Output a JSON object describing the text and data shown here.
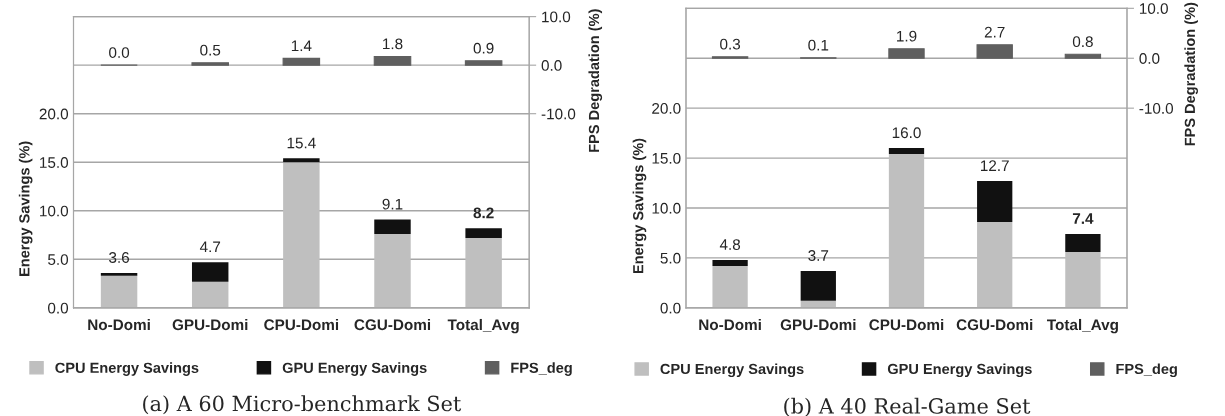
{
  "chart_data": [
    {
      "type": "bar",
      "title": "(a) A 60 Micro-benchmark Set",
      "ylabel": "Energy Savings (%)",
      "y2label": "FPS Degradation (%)",
      "categories": [
        "No-Domi",
        "GPU-Domi",
        "CPU-Domi",
        "CGU-Domi",
        "Total_Avg"
      ],
      "stacked": true,
      "series": [
        {
          "name": "CPU Energy Savings",
          "color": "#bfbfbf",
          "values": [
            3.3,
            2.7,
            15.0,
            7.6,
            7.2
          ]
        },
        {
          "name": "GPU Energy Savings",
          "color": "#111111",
          "values": [
            0.3,
            2.0,
            0.4,
            1.5,
            1.0
          ]
        },
        {
          "name": "FPS_deg",
          "color": "#5f5f5f",
          "axis": "y2",
          "values": [
            0.0,
            0.5,
            1.4,
            1.8,
            0.9
          ],
          "value_labels": [
            "0.0",
            "0.5",
            "1.4",
            "1.8",
            "0.9"
          ]
        }
      ],
      "totals": [
        "3.6",
        "4.7",
        "15.4",
        "9.1",
        "8.2"
      ],
      "ylim": [
        0,
        30
      ],
      "yticks": [
        {
          "value": 0,
          "label": "0.0"
        },
        {
          "value": 5,
          "label": "5.0"
        },
        {
          "value": 10,
          "label": "10.0"
        },
        {
          "value": 15,
          "label": "15.0"
        },
        {
          "value": 20,
          "label": "20.0"
        },
        {
          "value": 25,
          "label": null
        }
      ],
      "y2lim": [
        -50,
        10
      ],
      "y2ticks": [
        {
          "value": -10,
          "label": "-10.0"
        },
        {
          "value": 0,
          "label": "0.0"
        },
        {
          "value": 10,
          "label": "10.0"
        }
      ],
      "grid": "y",
      "legend": "bottom"
    },
    {
      "type": "bar",
      "title": "(b) A 40 Real-Game Set",
      "ylabel": "Energy Savings (%)",
      "y2label": "FPS Degradation (%)",
      "categories": [
        "No-Domi",
        "GPU-Domi",
        "CPU-Domi",
        "CGU-Domi",
        "Total_Avg"
      ],
      "stacked": true,
      "series": [
        {
          "name": "CPU Energy Savings",
          "color": "#bfbfbf",
          "values": [
            4.2,
            0.7,
            15.4,
            8.6,
            5.6
          ]
        },
        {
          "name": "GPU Energy Savings",
          "color": "#111111",
          "values": [
            0.6,
            3.0,
            0.6,
            4.1,
            1.8
          ]
        },
        {
          "name": "FPS_deg",
          "color": "#5f5f5f",
          "axis": "y2",
          "values": [
            0.3,
            0.1,
            1.9,
            2.7,
            0.8
          ],
          "value_labels": [
            "0.3",
            "0.1",
            "1.9",
            "2.7",
            "0.8"
          ]
        }
      ],
      "totals": [
        "4.8",
        "3.7",
        "16.0",
        "12.7",
        "7.4"
      ],
      "ylim": [
        0,
        30
      ],
      "yticks": [
        {
          "value": 0,
          "label": "0.0"
        },
        {
          "value": 5,
          "label": "5.0"
        },
        {
          "value": 10,
          "label": "10.0"
        },
        {
          "value": 15,
          "label": "15.0"
        },
        {
          "value": 20,
          "label": "20.0"
        },
        {
          "value": 25,
          "label": null
        }
      ],
      "y2lim": [
        -50,
        10
      ],
      "y2ticks": [
        {
          "value": -10,
          "label": "-10.0"
        },
        {
          "value": 0,
          "label": "0.0"
        },
        {
          "value": 10,
          "label": "10.0"
        }
      ],
      "grid": "y",
      "legend": "bottom"
    }
  ]
}
